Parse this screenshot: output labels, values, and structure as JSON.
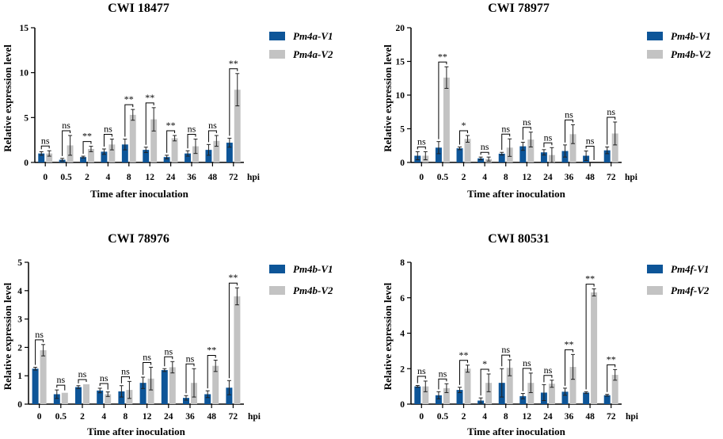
{
  "figure": {
    "colors": {
      "v1": "#0d5598",
      "v2": "#c3c3c3"
    },
    "hpi_label": "hpi"
  },
  "chart_data": [
    {
      "type": "bar",
      "title": "CWI 18477",
      "xlabel": "Time after inoculation",
      "ylabel": "Relative expression level",
      "ylim": [
        0,
        15
      ],
      "yticks": [
        "0",
        "5",
        "10",
        "15"
      ],
      "categories": [
        "0",
        "0.5",
        "2",
        "4",
        "8",
        "12",
        "24",
        "36",
        "48",
        "72"
      ],
      "series": [
        {
          "name": "Pm4a-V1",
          "values": [
            1.0,
            0.3,
            0.6,
            1.2,
            2.0,
            1.4,
            0.6,
            1.0,
            1.4,
            2.2
          ],
          "errors": [
            0.2,
            0.15,
            0.1,
            0.3,
            0.6,
            0.3,
            0.2,
            0.3,
            0.6,
            0.5
          ]
        },
        {
          "name": "Pm4a-V2",
          "values": [
            1.0,
            1.9,
            1.5,
            2.0,
            5.3,
            4.8,
            2.7,
            1.8,
            2.4,
            8.1
          ],
          "errors": [
            0.3,
            1.1,
            0.3,
            0.6,
            0.6,
            1.3,
            0.3,
            0.8,
            0.6,
            1.8
          ]
        }
      ],
      "significance": [
        "ns",
        "ns",
        "**",
        "ns",
        "**",
        "**",
        "**",
        "ns",
        "ns",
        "**"
      ]
    },
    {
      "type": "bar",
      "title": "CWI 78977",
      "xlabel": "Time after inoculation",
      "ylabel": "Relative expression level",
      "ylim": [
        0,
        20
      ],
      "yticks": [
        "0",
        "5",
        "10",
        "15",
        "20"
      ],
      "categories": [
        "0",
        "0.5",
        "2",
        "4",
        "8",
        "12",
        "24",
        "36",
        "48",
        "72"
      ],
      "series": [
        {
          "name": "Pm4b-V1",
          "values": [
            1.0,
            2.2,
            2.1,
            0.6,
            1.3,
            2.4,
            1.5,
            1.7,
            1.0,
            1.8
          ],
          "errors": [
            0.6,
            0.9,
            0.2,
            0.2,
            0.2,
            0.6,
            0.4,
            0.9,
            0.7,
            0.5
          ]
        },
        {
          "name": "Pm4b-V2",
          "values": [
            1.0,
            12.6,
            3.5,
            0.5,
            2.2,
            3.4,
            1.1,
            4.2,
            0.0,
            4.3
          ],
          "errors": [
            0.6,
            1.6,
            0.5,
            0.3,
            1.3,
            1.1,
            1.1,
            1.4,
            0.0,
            1.7
          ]
        }
      ],
      "significance": [
        "ns",
        "**",
        "*",
        "ns",
        "ns",
        "ns",
        "ns",
        "ns",
        "ns",
        "ns"
      ]
    },
    {
      "type": "bar",
      "title": "CWI 78976",
      "xlabel": "Time after inoculation",
      "ylabel": "Relative expression level",
      "ylim": [
        0,
        5
      ],
      "yticks": [
        "0",
        "1",
        "2",
        "3",
        "4",
        "5"
      ],
      "categories": [
        "0",
        "0.5",
        "2",
        "4",
        "8",
        "12",
        "24",
        "36",
        "48",
        "72"
      ],
      "series": [
        {
          "name": "Pm4b-V1",
          "values": [
            1.25,
            0.35,
            0.6,
            0.48,
            0.45,
            0.75,
            1.2,
            0.22,
            0.35,
            0.58
          ],
          "errors": [
            0.05,
            0.15,
            0.05,
            0.08,
            0.2,
            0.2,
            0.05,
            0.08,
            0.12,
            0.25
          ]
        },
        {
          "name": "Pm4b-V2",
          "values": [
            1.9,
            0.4,
            0.7,
            0.35,
            0.5,
            0.9,
            1.3,
            0.75,
            1.35,
            3.8
          ],
          "errors": [
            0.2,
            0.0,
            0.0,
            0.08,
            0.3,
            0.4,
            0.2,
            0.5,
            0.2,
            0.3
          ]
        }
      ],
      "legend_labels": [
        "Pm4b-V1",
        "Pm4b-V2"
      ],
      "significance": [
        "ns",
        "ns",
        "ns",
        "ns",
        "ns",
        "ns",
        "ns",
        "ns",
        "**",
        "**"
      ]
    },
    {
      "type": "bar",
      "title": "CWI 80531",
      "xlabel": "Time after inoculation",
      "ylabel": "Relative expression level",
      "ylim": [
        0,
        8
      ],
      "yticks": [
        "0",
        "2",
        "4",
        "6",
        "8"
      ],
      "categories": [
        "0",
        "0.5",
        "2",
        "4",
        "8",
        "12",
        "24",
        "36",
        "48",
        "72"
      ],
      "series": [
        {
          "name": "Pm4f-V1",
          "values": [
            1.0,
            0.5,
            0.8,
            0.2,
            1.2,
            0.45,
            0.65,
            0.7,
            0.65,
            0.5
          ],
          "errors": [
            0.05,
            0.2,
            0.15,
            0.15,
            0.8,
            0.15,
            0.45,
            0.2,
            0.05,
            0.05
          ]
        },
        {
          "name": "Pm4f-V2",
          "values": [
            1.0,
            0.9,
            2.0,
            1.2,
            2.05,
            1.2,
            1.15,
            2.1,
            6.3,
            1.65
          ],
          "errors": [
            0.3,
            0.25,
            0.2,
            0.5,
            0.45,
            0.55,
            0.2,
            0.7,
            0.2,
            0.3
          ]
        }
      ],
      "legend_labels": [
        "Pm4f-V1",
        "Pm4f-V2"
      ],
      "significance": [
        "ns",
        "ns",
        "**",
        "*",
        "ns",
        "ns",
        "ns",
        "**",
        "**",
        "**"
      ]
    }
  ]
}
